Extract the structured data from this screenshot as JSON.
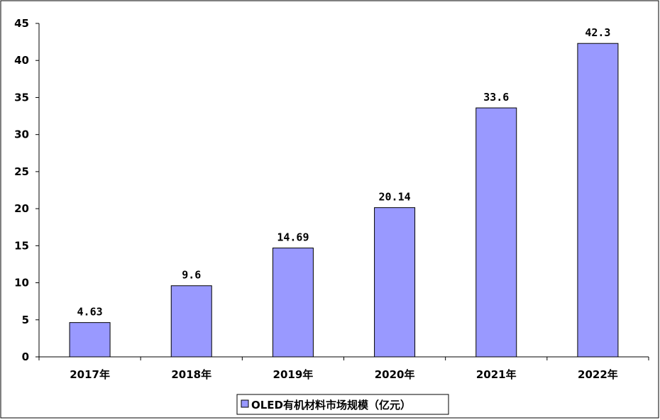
{
  "colors": {
    "bar_fill": "#9999ff",
    "bar_stroke": "#000000",
    "axis": "#000000",
    "background": "#ffffff"
  },
  "chart_data": {
    "type": "bar",
    "categories": [
      "2017年",
      "2018年",
      "2019年",
      "2020年",
      "2021年",
      "2022年"
    ],
    "series": [
      {
        "name": "OLED有机材料市场规模（亿元）",
        "values": [
          4.63,
          9.6,
          14.69,
          20.14,
          33.6,
          42.3
        ]
      }
    ],
    "data_labels": [
      "4.63",
      "9.6",
      "14.69",
      "20.14",
      "33.6",
      "42.3"
    ],
    "ylim": [
      0,
      45
    ],
    "yticks": [
      0,
      5,
      10,
      15,
      20,
      25,
      30,
      35,
      40,
      45
    ],
    "grid": false,
    "legend_position": "bottom-center",
    "title": "",
    "xlabel": "",
    "ylabel": ""
  }
}
